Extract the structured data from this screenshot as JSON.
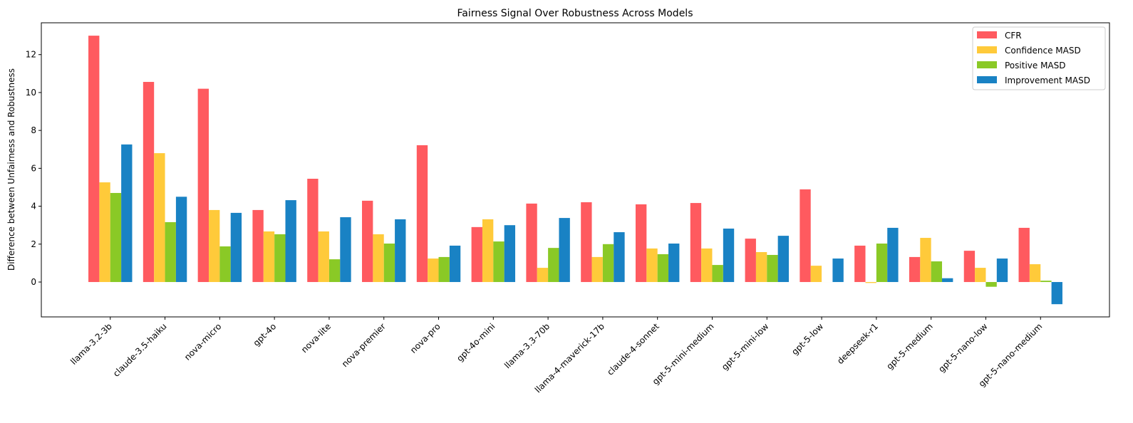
{
  "chart_data": {
    "type": "bar",
    "title": "Fairness Signal Over Robustness Across Models",
    "xlabel": "",
    "ylabel": "Difference between Unfairness and Robustness",
    "ylim": [
      -1.84,
      13.68
    ],
    "yticks": [
      0,
      2,
      4,
      6,
      8,
      10,
      12
    ],
    "grid": false,
    "legend_position": "top-right",
    "categories": [
      "llama-3.2-3b",
      "claude-3.5-haiku",
      "nova-micro",
      "gpt-4o",
      "nova-lite",
      "nova-premier",
      "nova-pro",
      "gpt-4o-mini",
      "llama-3.3-70b",
      "llama-4-maverick-17b",
      "claude-4-sonnet",
      "gpt-5-mini-medium",
      "gpt-5-mini-low",
      "gpt-5-low",
      "deepseek-r1",
      "gpt-5-medium",
      "gpt-5-nano-low",
      "gpt-5-nano-medium"
    ],
    "series": [
      {
        "name": "CFR",
        "color": "#ff5a5f",
        "values": [
          13.0,
          10.56,
          10.2,
          3.8,
          5.45,
          4.29,
          7.22,
          2.9,
          4.14,
          4.21,
          4.1,
          4.17,
          2.29,
          4.89,
          1.92,
          1.32,
          1.65,
          2.86
        ]
      },
      {
        "name": "Confidence MASD",
        "color": "#ffca3a",
        "values": [
          5.26,
          6.8,
          3.8,
          2.67,
          2.67,
          2.52,
          1.24,
          3.31,
          0.75,
          1.32,
          1.77,
          1.77,
          1.58,
          0.86,
          -0.05,
          2.33,
          0.75,
          0.94
        ]
      },
      {
        "name": "Positive MASD",
        "color": "#8ac926",
        "values": [
          4.7,
          3.16,
          1.88,
          2.52,
          1.2,
          2.03,
          1.32,
          2.14,
          1.8,
          2.0,
          1.47,
          0.9,
          1.43,
          0.0,
          2.03,
          1.09,
          -0.25,
          0.07
        ]
      },
      {
        "name": "Improvement MASD",
        "color": "#1982c4",
        "values": [
          7.26,
          4.5,
          3.65,
          4.32,
          3.42,
          3.31,
          1.92,
          3.0,
          3.38,
          2.63,
          2.03,
          2.82,
          2.44,
          1.24,
          2.86,
          0.2,
          1.24,
          -1.17
        ]
      }
    ]
  }
}
